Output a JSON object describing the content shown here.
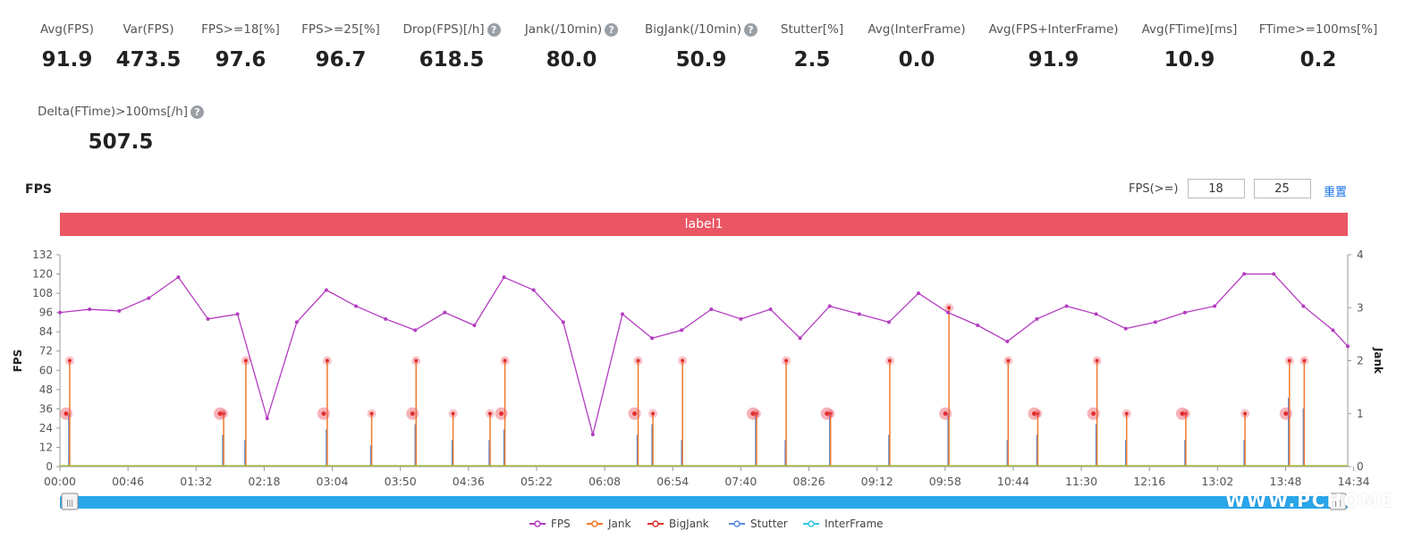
{
  "metrics": [
    {
      "label": "Avg(FPS)",
      "value": "91.9",
      "help": false
    },
    {
      "label": "Var(FPS)",
      "value": "473.5",
      "help": false
    },
    {
      "label": "FPS>=18[%]",
      "value": "97.6",
      "help": false
    },
    {
      "label": "FPS>=25[%]",
      "value": "96.7",
      "help": false
    },
    {
      "label": "Drop(FPS)[/h]",
      "value": "618.5",
      "help": true
    },
    {
      "label": "Jank(/10min)",
      "value": "80.0",
      "help": true
    },
    {
      "label": "BigJank(/10min)",
      "value": "50.9",
      "help": true
    },
    {
      "label": "Stutter[%]",
      "value": "2.5",
      "help": false
    },
    {
      "label": "Avg(InterFrame)",
      "value": "0.0",
      "help": false
    },
    {
      "label": "Avg(FPS+InterFrame)",
      "value": "91.9",
      "help": false
    },
    {
      "label": "Avg(FTime)[ms]",
      "value": "10.9",
      "help": false
    },
    {
      "label": "FTime>=100ms[%]",
      "value": "0.2",
      "help": false
    },
    {
      "label": "Delta(FTime)>100ms[/h]",
      "value": "507.5",
      "help": true
    }
  ],
  "help_glyph": "?",
  "chart_title": "FPS",
  "fps_filter": {
    "label": "FPS(>=)",
    "value1": "18",
    "value2": "25"
  },
  "reset_label": "重置",
  "label_bar": "label1",
  "watermark": "WWW.PCHOME",
  "colors": {
    "fps": "#b43cc0",
    "jank": "#f07a2a",
    "bigjank": "#e0302f",
    "stutter": "#5b8bd9",
    "interframe": "#35c4e0",
    "label_bar": "#ea5664",
    "slider": "#2aa6ea"
  },
  "chart_data": {
    "type": "line",
    "title": "",
    "ylabel": "FPS",
    "y2label": "Jank",
    "ylim": [
      0,
      132
    ],
    "y2lim": [
      0,
      4
    ],
    "yticks": [
      "0",
      "12",
      "24",
      "36",
      "48",
      "60",
      "72",
      "84",
      "96",
      "108",
      "120",
      "132"
    ],
    "y2ticks": [
      "0",
      "1",
      "2",
      "3",
      "4"
    ],
    "xticks": [
      "00:00",
      "00:46",
      "01:32",
      "02:18",
      "03:04",
      "03:50",
      "04:36",
      "05:22",
      "06:08",
      "06:54",
      "07:40",
      "08:26",
      "09:12",
      "09:58",
      "10:44",
      "11:30",
      "12:16",
      "13:02",
      "13:48",
      "14:34"
    ],
    "xlim_seconds": [
      0,
      870
    ],
    "series": [
      {
        "name": "FPS",
        "x": [
          0,
          20,
          40,
          60,
          80,
          100,
          120,
          140,
          160,
          180,
          200,
          220,
          240,
          260,
          280,
          300,
          320,
          340,
          360,
          380,
          400,
          420,
          440,
          460,
          480,
          500,
          520,
          540,
          560,
          580,
          600,
          620,
          640,
          660,
          680,
          700,
          720,
          740,
          760,
          780,
          800,
          820,
          840,
          860,
          870
        ],
        "values": [
          96,
          98,
          97,
          105,
          118,
          92,
          95,
          30,
          90,
          110,
          100,
          92,
          85,
          96,
          88,
          118,
          110,
          90,
          20,
          95,
          80,
          85,
          98,
          92,
          98,
          80,
          100,
          95,
          90,
          108,
          96,
          88,
          78,
          92,
          100,
          95,
          86,
          90,
          96,
          100,
          120,
          120,
          100,
          85,
          75
        ]
      },
      {
        "name": "Jank",
        "x": [
          6,
          110,
          125,
          180,
          210,
          240,
          265,
          290,
          300,
          390,
          400,
          420,
          470,
          490,
          520,
          560,
          600,
          640,
          660,
          700,
          720,
          760,
          800,
          830,
          840
        ],
        "values": [
          2,
          1,
          2,
          2,
          1,
          2,
          1,
          1,
          2,
          2,
          1,
          2,
          1,
          2,
          1,
          2,
          3,
          2,
          1,
          2,
          1,
          1,
          1,
          2,
          2
        ]
      },
      {
        "name": "BigJank",
        "x": [
          6,
          110,
          180,
          240,
          300,
          390,
          470,
          520,
          600,
          660,
          700,
          760,
          830
        ],
        "values": [
          1,
          1,
          1,
          1,
          1,
          1,
          1,
          1,
          1,
          1,
          1,
          1,
          1
        ]
      },
      {
        "name": "Stutter",
        "x": [
          6,
          110,
          125,
          180,
          210,
          240,
          265,
          290,
          300,
          390,
          400,
          420,
          470,
          490,
          520,
          560,
          600,
          640,
          660,
          700,
          720,
          760,
          800,
          830,
          840
        ],
        "values": [
          1,
          0.6,
          0.5,
          0.7,
          0.4,
          0.8,
          0.5,
          0.5,
          0.7,
          0.6,
          0.8,
          0.5,
          1,
          0.5,
          1,
          0.6,
          1,
          0.5,
          0.6,
          0.8,
          0.5,
          0.5,
          0.5,
          1.3,
          1.1
        ]
      },
      {
        "name": "InterFrame",
        "x": [
          0,
          870
        ],
        "values": [
          0,
          0
        ]
      }
    ],
    "legend_position": "bottom-center",
    "grid": false
  }
}
